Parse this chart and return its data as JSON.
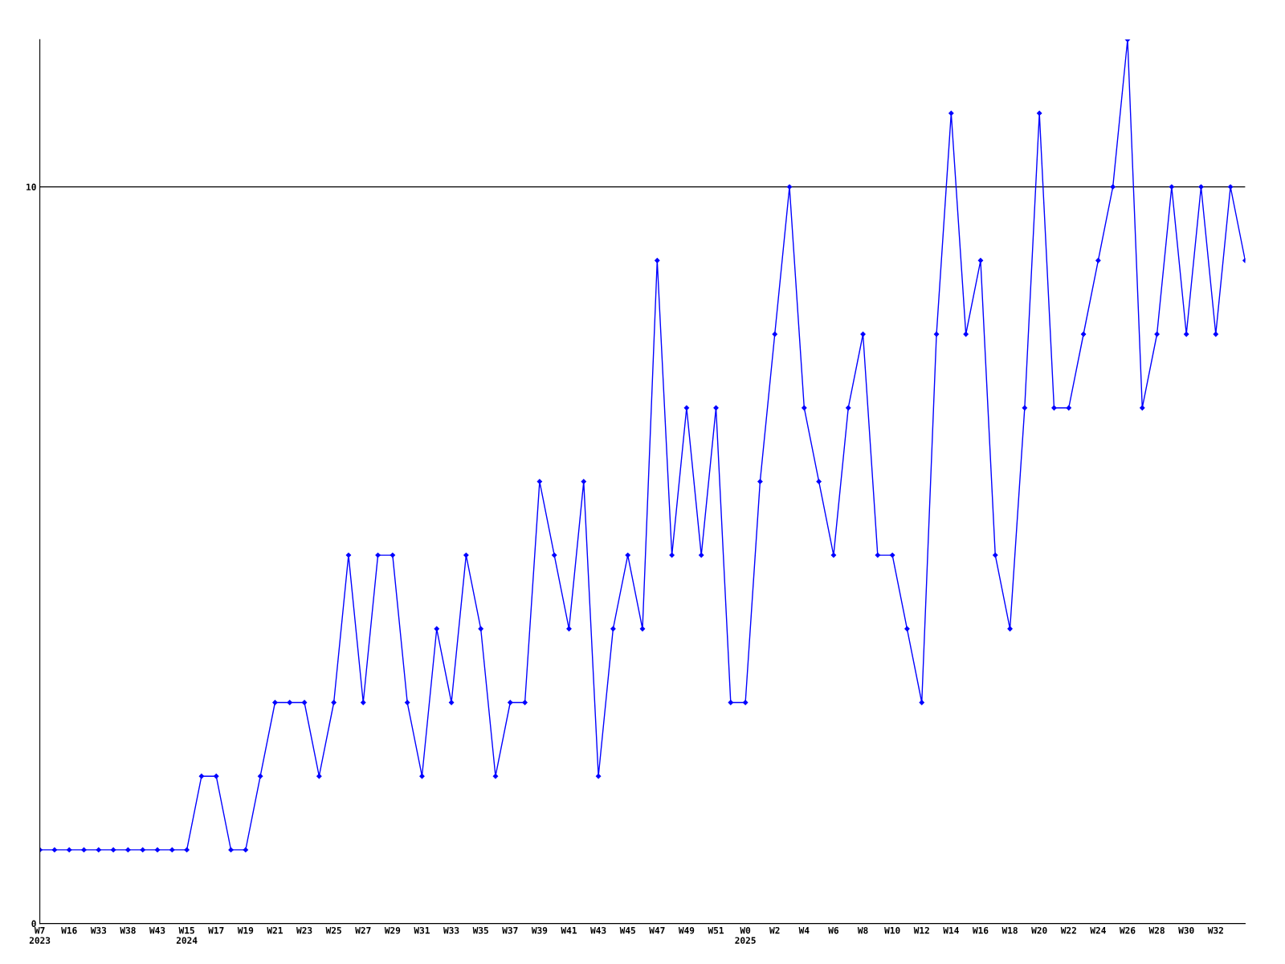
{
  "chart_data": {
    "type": "line",
    "categories": [
      "W7\n2023",
      null,
      "W16",
      null,
      "W33",
      null,
      "W38",
      null,
      "W43",
      null,
      "W15\n2024",
      null,
      "W17",
      null,
      "W19",
      null,
      "W21",
      null,
      "W23",
      null,
      "W25",
      null,
      "W27",
      null,
      "W29",
      null,
      "W31",
      null,
      "W33",
      null,
      "W35",
      null,
      "W37",
      null,
      "W39",
      null,
      "W41",
      null,
      "W43",
      null,
      "W45",
      null,
      "W47",
      null,
      "W49",
      null,
      "W51",
      null,
      "W0\n2025",
      null,
      "W2",
      null,
      "W4",
      null,
      "W6",
      null,
      "W8",
      null,
      "W10",
      null,
      "W12",
      null,
      "W14",
      null,
      "W16",
      null,
      "W18",
      null,
      "W20",
      null,
      "W22",
      null,
      "W24",
      null,
      "W26",
      null,
      "W28",
      null,
      "W30",
      null,
      "W32",
      null,
      null
    ],
    "series": [
      {
        "color": "#0000ff",
        "values": [
          1,
          1,
          1,
          1,
          1,
          1,
          1,
          1,
          1,
          1,
          1,
          2,
          2,
          1,
          1,
          2,
          3,
          3,
          3,
          2,
          3,
          5,
          3,
          5,
          5,
          3,
          2,
          4,
          3,
          5,
          4,
          2,
          3,
          3,
          6,
          5,
          4,
          6,
          2,
          4,
          5,
          4,
          9,
          5,
          7,
          5,
          7,
          3,
          3,
          6,
          8,
          10,
          7,
          6,
          5,
          7,
          8,
          5,
          5,
          4,
          3,
          8,
          11,
          8,
          9,
          5,
          4,
          7,
          11,
          7,
          7,
          8,
          9,
          10,
          12,
          7,
          8,
          10,
          8,
          10,
          8,
          10,
          9
        ]
      }
    ],
    "ylim": [
      0,
      12
    ],
    "yticks": [
      0,
      10
    ],
    "grid": "y",
    "marker": "diamond",
    "line_style": "solid"
  }
}
